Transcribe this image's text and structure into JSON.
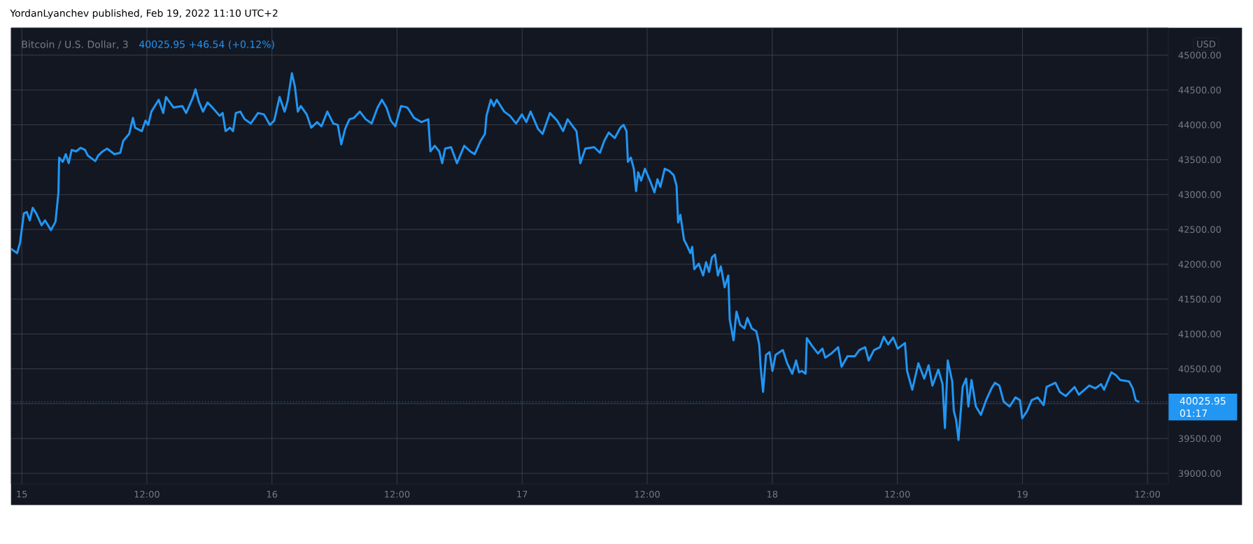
{
  "chart_data": {
    "type": "line",
    "title": "Bitcoin / U.S. Dollar, 3",
    "subtitle": "40025.95  +46.54 (+0.12%)",
    "ylabel": "USD",
    "annotations": [
      "YordanLyanchev published, Feb 19, 2022 11:10 UTC+2",
      "01:17"
    ],
    "color": "#2196f3",
    "marker": "none",
    "line_style": "solid",
    "grid": true,
    "xlim": [
      "2022-02-14T22:59",
      "2022-02-19T14:00"
    ],
    "ylim": [
      38850,
      45390
    ],
    "xticks": [
      {
        "value": "2022-02-15T00:00",
        "label": "15"
      },
      {
        "value": "2022-02-15T12:00",
        "label": "12:00"
      },
      {
        "value": "2022-02-16T00:00",
        "label": "16"
      },
      {
        "value": "2022-02-16T12:00",
        "label": "12:00"
      },
      {
        "value": "2022-02-17T00:00",
        "label": "17"
      },
      {
        "value": "2022-02-17T12:00",
        "label": "12:00"
      },
      {
        "value": "2022-02-18T00:00",
        "label": "18"
      },
      {
        "value": "2022-02-18T12:00",
        "label": "12:00"
      },
      {
        "value": "2022-02-19T00:00",
        "label": "19"
      },
      {
        "value": "2022-02-19T12:00",
        "label": "12:00"
      }
    ],
    "yticks": [
      {
        "value": 39000,
        "label": "39000.00"
      },
      {
        "value": 39500,
        "label": "39500.00"
      },
      {
        "value": 40000,
        "label": null
      },
      {
        "value": 40500,
        "label": "40500.00"
      },
      {
        "value": 41000,
        "label": "41000.00"
      },
      {
        "value": 41500,
        "label": "41500.00"
      },
      {
        "value": 42000,
        "label": "42000.00"
      },
      {
        "value": 42500,
        "label": "42500.00"
      },
      {
        "value": 43000,
        "label": "43000.00"
      },
      {
        "value": 43500,
        "label": "43500.00"
      },
      {
        "value": 44000,
        "label": "44000.00"
      },
      {
        "value": 44500,
        "label": "44500.00"
      },
      {
        "value": 45000,
        "label": "45000.00"
      }
    ],
    "ref_lines": [
      {
        "axis": "y",
        "value": 40025.95,
        "label": "40025.95",
        "color": "#2196f3",
        "line_style": "dotted"
      }
    ],
    "x": [
      "2022-02-14T22:59",
      "2022-02-14T23:33",
      "2022-02-14T23:50",
      "2022-02-15T00:12",
      "2022-02-15T00:29",
      "2022-02-15T00:46",
      "2022-02-15T01:03",
      "2022-02-15T01:23",
      "2022-02-15T01:54",
      "2022-02-15T02:14",
      "2022-02-15T02:48",
      "2022-02-15T03:14",
      "2022-02-15T03:31",
      "2022-02-15T03:35",
      "2022-02-15T03:56",
      "2022-02-15T04:13",
      "2022-02-15T04:30",
      "2022-02-15T04:47",
      "2022-02-15T05:13",
      "2022-02-15T05:38",
      "2022-02-15T06:04",
      "2022-02-15T06:20",
      "2022-02-15T07:03",
      "2022-02-15T07:20",
      "2022-02-15T07:46",
      "2022-02-15T08:11",
      "2022-02-15T08:53",
      "2022-02-15T09:27",
      "2022-02-15T09:44",
      "2022-02-15T10:18",
      "2022-02-15T10:40",
      "2022-02-15T10:52",
      "2022-02-15T11:31",
      "2022-02-15T11:52",
      "2022-02-15T12:08",
      "2022-02-15T12:26",
      "2022-02-15T13:08",
      "2022-02-15T13:34",
      "2022-02-15T13:50",
      "2022-02-15T14:33",
      "2022-02-15T15:24",
      "2022-02-15T15:46",
      "2022-02-15T16:23",
      "2022-02-15T16:40",
      "2022-02-15T16:58",
      "2022-02-15T17:23",
      "2022-02-15T17:49",
      "2022-02-15T18:17",
      "2022-02-15T18:59",
      "2022-02-15T19:16",
      "2022-02-15T19:33",
      "2022-02-15T19:58",
      "2022-02-15T20:16",
      "2022-02-15T20:32",
      "2022-02-15T20:58",
      "2022-02-15T21:23",
      "2022-02-15T21:58",
      "2022-02-15T22:40",
      "2022-02-15T23:14",
      "2022-02-15T23:48",
      "2022-02-16T00:13",
      "2022-02-16T00:44",
      "2022-02-16T01:13",
      "2022-02-16T01:30",
      "2022-02-16T01:55",
      "2022-02-16T02:12",
      "2022-02-16T02:29",
      "2022-02-16T02:46",
      "2022-02-16T03:20",
      "2022-02-16T03:46",
      "2022-02-16T04:20",
      "2022-02-16T04:45",
      "2022-02-16T05:19",
      "2022-02-16T05:53",
      "2022-02-16T06:19",
      "2022-02-16T06:39",
      "2022-02-16T07:01",
      "2022-02-16T07:26",
      "2022-02-16T07:52",
      "2022-02-16T08:26",
      "2022-02-16T09:00",
      "2022-02-16T09:34",
      "2022-02-16T10:08",
      "2022-02-16T10:33",
      "2022-02-16T10:59",
      "2022-02-16T11:24",
      "2022-02-16T11:50",
      "2022-02-16T12:23",
      "2022-02-16T12:58",
      "2022-02-16T13:05",
      "2022-02-16T13:38",
      "2022-02-16T14:21",
      "2022-02-16T15:00",
      "2022-02-16T15:12",
      "2022-02-16T15:37",
      "2022-02-16T16:03",
      "2022-02-16T16:20",
      "2022-02-16T16:37",
      "2022-02-16T17:11",
      "2022-02-16T17:45",
      "2022-02-16T18:27",
      "2022-02-16T19:01",
      "2022-02-16T19:27",
      "2022-02-16T20:01",
      "2022-02-16T20:26",
      "2022-02-16T20:35",
      "2022-02-16T21:00",
      "2022-02-16T21:17",
      "2022-02-16T21:34",
      "2022-02-16T22:17",
      "2022-02-16T22:50",
      "2022-02-16T23:25",
      "2022-02-16T23:59",
      "2022-02-17T00:24",
      "2022-02-17T00:49",
      "2022-02-17T01:32",
      "2022-02-17T01:58",
      "2022-02-17T02:40",
      "2022-02-17T03:22",
      "2022-02-17T03:56",
      "2022-02-17T04:22",
      "2022-02-17T05:13",
      "2022-02-17T05:35",
      "2022-02-17T06:04",
      "2022-02-17T06:55",
      "2022-02-17T07:28",
      "2022-02-17T07:53",
      "2022-02-17T08:19",
      "2022-02-17T08:53",
      "2022-02-17T09:26",
      "2022-02-17T09:44",
      "2022-02-17T10:01",
      "2022-02-17T10:09",
      "2022-02-17T10:26",
      "2022-02-17T10:43",
      "2022-02-17T10:56",
      "2022-02-17T11:08",
      "2022-02-17T11:25",
      "2022-02-17T11:47",
      "2022-02-17T12:16",
      "2022-02-17T12:42",
      "2022-02-17T12:59",
      "2022-02-17T13:16",
      "2022-02-17T13:41",
      "2022-02-17T14:07",
      "2022-02-17T14:32",
      "2022-02-17T14:49",
      "2022-02-17T14:58",
      "2022-02-17T15:11",
      "2022-02-17T15:32",
      "2022-02-17T15:49",
      "2022-02-17T16:09",
      "2022-02-17T16:19",
      "2022-02-17T16:31",
      "2022-02-17T16:57",
      "2022-02-17T17:22",
      "2022-02-17T17:39",
      "2022-02-17T17:56",
      "2022-02-17T18:13",
      "2022-02-17T18:30",
      "2022-02-17T18:47",
      "2022-02-17T19:04",
      "2022-02-17T19:26",
      "2022-02-17T19:47",
      "2022-02-17T19:55",
      "2022-02-17T20:17",
      "2022-02-17T20:34",
      "2022-02-17T20:55",
      "2022-02-17T21:20",
      "2022-02-17T21:37",
      "2022-02-17T22:02",
      "2022-02-17T22:28",
      "2022-02-17T22:45",
      "2022-02-17T22:53",
      "2022-02-17T23:07",
      "2022-02-17T23:24",
      "2022-02-17T23:44",
      "2022-02-18T00:01",
      "2022-02-18T00:19",
      "2022-02-18T01:01",
      "2022-02-18T01:26",
      "2022-02-18T01:55",
      "2022-02-18T02:17",
      "2022-02-18T02:34",
      "2022-02-18T02:50",
      "2022-02-18T03:12",
      "2022-02-18T03:19",
      "2022-02-18T03:49",
      "2022-02-18T04:23",
      "2022-02-18T04:49",
      "2022-02-18T05:05",
      "2022-02-18T05:40",
      "2022-02-18T06:19",
      "2022-02-18T06:39",
      "2022-02-18T07:13",
      "2022-02-18T07:55",
      "2022-02-18T08:21",
      "2022-02-18T08:55",
      "2022-02-18T09:15",
      "2022-02-18T09:46",
      "2022-02-18T10:20",
      "2022-02-18T10:42",
      "2022-02-18T11:07",
      "2022-02-18T11:36",
      "2022-02-18T12:02",
      "2022-02-18T12:44",
      "2022-02-18T12:56",
      "2022-02-18T13:26",
      "2022-02-18T14:01",
      "2022-02-18T14:35",
      "2022-02-18T15:00",
      "2022-02-18T15:22",
      "2022-02-18T15:56",
      "2022-02-18T16:20",
      "2022-02-18T16:34",
      "2022-02-18T16:50",
      "2022-02-18T17:16",
      "2022-02-18T17:25",
      "2022-02-18T17:38",
      "2022-02-18T17:52",
      "2022-02-18T18:16",
      "2022-02-18T18:36",
      "2022-02-18T18:49",
      "2022-02-18T19:07",
      "2022-02-18T19:32",
      "2022-02-18T20:01",
      "2022-02-18T20:31",
      "2022-02-18T21:02",
      "2022-02-18T21:22",
      "2022-02-18T21:47",
      "2022-02-18T22:12",
      "2022-02-18T22:46",
      "2022-02-18T23:20",
      "2022-02-18T23:46",
      "2022-02-18T23:59",
      "2022-02-19T00:28",
      "2022-02-19T00:53",
      "2022-02-19T01:28",
      "2022-02-19T02:02",
      "2022-02-19T02:19",
      "2022-02-19T03:10",
      "2022-02-19T03:35",
      "2022-02-19T04:09",
      "2022-02-19T05:00",
      "2022-02-19T05:25",
      "2022-02-19T06:25",
      "2022-02-19T06:59",
      "2022-02-19T07:33",
      "2022-02-19T07:50",
      "2022-02-19T08:32",
      "2022-02-19T08:58",
      "2022-02-19T09:23",
      "2022-02-19T10:14",
      "2022-02-19T10:35",
      "2022-02-19T10:52",
      "2022-02-19T11:08"
    ],
    "values": [
      42220,
      42160,
      42310,
      42730,
      42750,
      42630,
      42810,
      42730,
      42560,
      42630,
      42490,
      42610,
      43030,
      43530,
      43470,
      43580,
      43450,
      43640,
      43620,
      43670,
      43640,
      43560,
      43480,
      43560,
      43620,
      43660,
      43580,
      43600,
      43770,
      43870,
      44100,
      43960,
      43910,
      44060,
      44000,
      44190,
      44360,
      44170,
      44400,
      44250,
      44270,
      44170,
      44380,
      44510,
      44340,
      44190,
      44320,
      44250,
      44130,
      44170,
      43910,
      43960,
      43910,
      44170,
      44190,
      44080,
      44020,
      44170,
      44150,
      44000,
      44060,
      44400,
      44190,
      44340,
      44740,
      44550,
      44190,
      44270,
      44150,
      43960,
      44040,
      43980,
      44190,
      44020,
      44000,
      43720,
      43940,
      44080,
      44100,
      44190,
      44080,
      44020,
      44250,
      44360,
      44250,
      44060,
      43980,
      44270,
      44250,
      44230,
      44100,
      44040,
      44080,
      43620,
      43700,
      43620,
      43450,
      43660,
      43680,
      43450,
      43700,
      43620,
      43580,
      43770,
      43870,
      44130,
      44360,
      44270,
      44360,
      44190,
      44130,
      44020,
      44150,
      44040,
      44190,
      43940,
      43870,
      44170,
      44060,
      43910,
      44080,
      43910,
      43450,
      43660,
      43680,
      43600,
      43770,
      43890,
      43810,
      43960,
      44000,
      43910,
      43470,
      43530,
      43370,
      43050,
      43320,
      43200,
      43370,
      43200,
      43030,
      43220,
      43110,
      43370,
      43340,
      43280,
      43130,
      42600,
      42710,
      42350,
      42270,
      42160,
      42250,
      41930,
      42010,
      41840,
      42030,
      41890,
      42100,
      42140,
      41840,
      41970,
      41670,
      41840,
      41210,
      40910,
      41320,
      41130,
      41080,
      41230,
      41080,
      41040,
      40850,
      40530,
      40170,
      40700,
      40740,
      40470,
      40700,
      40770,
      40580,
      40430,
      40620,
      40450,
      40470,
      40430,
      40940,
      40830,
      40720,
      40790,
      40660,
      40720,
      40810,
      40530,
      40680,
      40680,
      40770,
      40810,
      40620,
      40770,
      40810,
      40960,
      40850,
      40950,
      40790,
      40870,
      40470,
      40200,
      40580,
      40360,
      40550,
      40260,
      40490,
      40280,
      39650,
      40620,
      40320,
      39900,
      39770,
      39480,
      40240,
      40360,
      39960,
      40340,
      39960,
      39840,
      40050,
      40220,
      40300,
      40260,
      40030,
      39960,
      40090,
      40050,
      39790,
      39900,
      40050,
      40090,
      39980,
      40240,
      40300,
      40170,
      40110,
      40240,
      40130,
      40260,
      40220,
      40280,
      40200,
      40450,
      40410,
      40340,
      40320,
      40220,
      40050,
      40030
    ]
  }
}
